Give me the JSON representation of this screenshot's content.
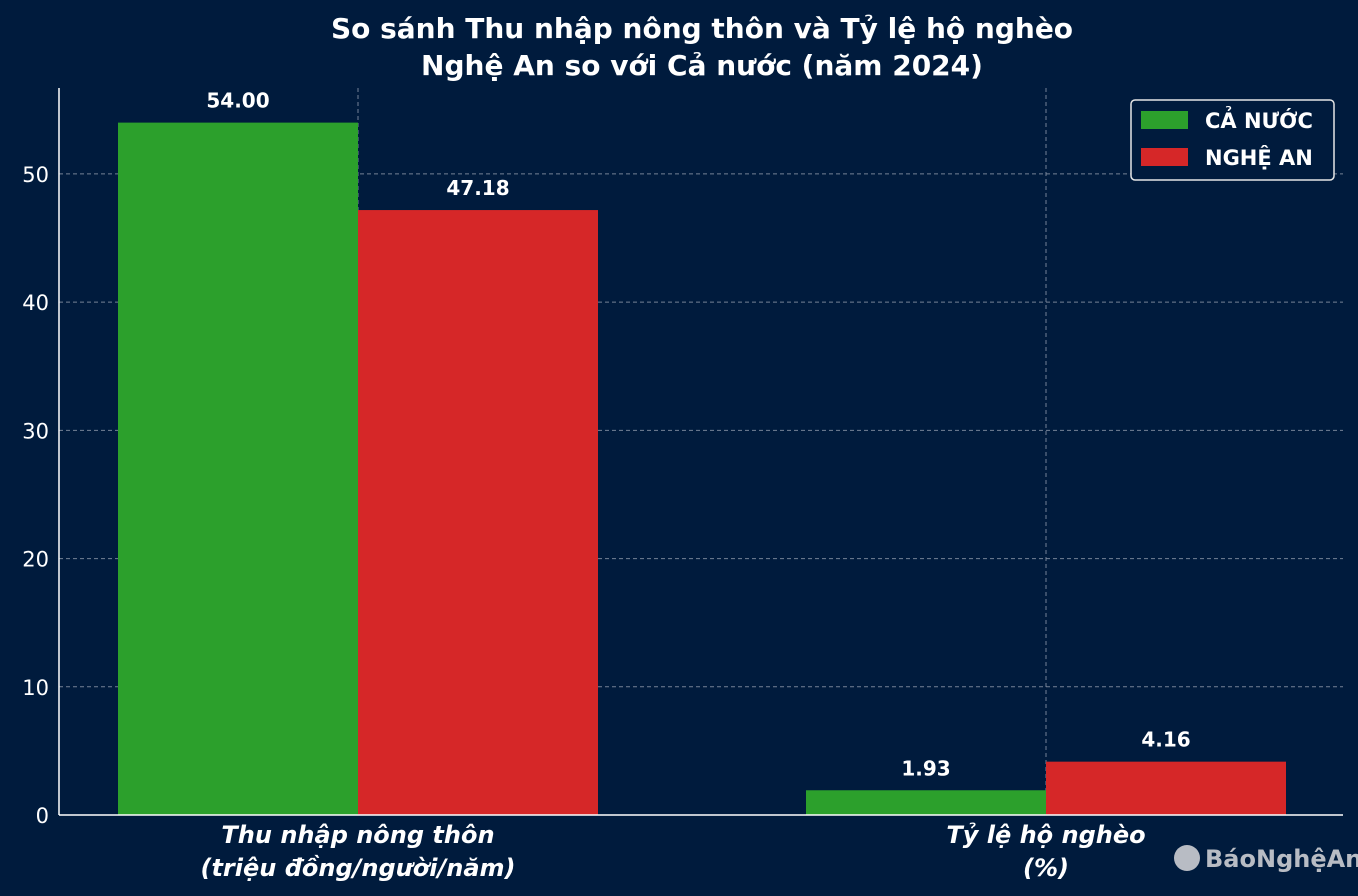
{
  "chart_data": {
    "type": "bar",
    "title_lines": [
      "So sánh Thu nhập nông thôn và Tỷ lệ hộ nghèo",
      "Nghệ An so với Cả nước (năm 2024)"
    ],
    "categories": [
      [
        "Thu nhập nông thôn",
        "(triệu đồng/người/năm)"
      ],
      [
        "Tỷ lệ hộ nghèo",
        "(%)"
      ]
    ],
    "series": [
      {
        "name": "CẢ NƯỚC",
        "color": "#2ca02c",
        "values": [
          54.0,
          1.93
        ],
        "labels": [
          "54.00",
          "1.93"
        ]
      },
      {
        "name": "NGHỆ AN",
        "color": "#d62728",
        "values": [
          47.18,
          4.16
        ],
        "labels": [
          "47.18",
          "4.16"
        ]
      }
    ],
    "ylim": [
      0,
      56.7
    ],
    "yticks": [
      0,
      10,
      20,
      30,
      40,
      50
    ],
    "grid": true,
    "legend": "top-right"
  },
  "watermark": "BáoNghệAn"
}
